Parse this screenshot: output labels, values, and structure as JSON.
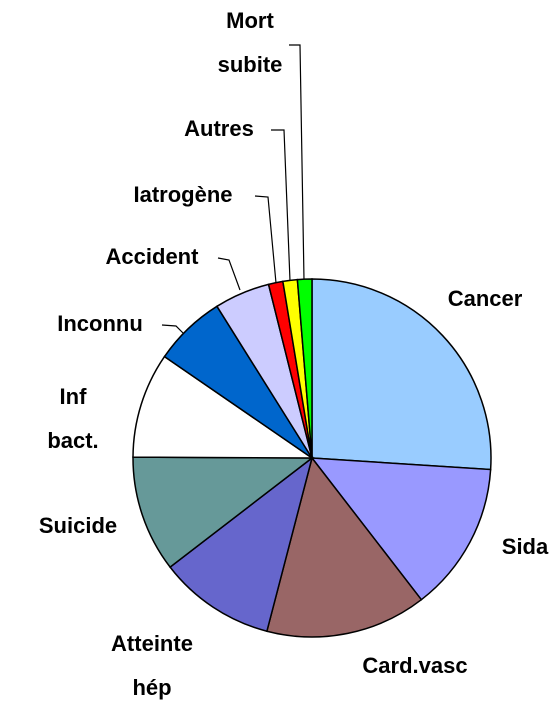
{
  "chart_data": {
    "type": "pie",
    "categories": [
      "Cancer",
      "Sida",
      "Card.vasc",
      "Atteinte hép",
      "Suicide",
      "Inf bact.",
      "Inconnu",
      "Accident",
      "Iatrogène",
      "Autres",
      "Mort subite"
    ],
    "values": [
      26,
      13.5,
      14.5,
      10.5,
      10.5,
      9.5,
      6.5,
      5,
      1.3,
      1.3,
      1.3
    ],
    "colors": [
      "#99ccff",
      "#9999ff",
      "#996666",
      "#6666cc",
      "#669999",
      "#ffffff",
      "#0066cc",
      "#ccccff",
      "#ff0000",
      "#ffff00",
      "#00ff00"
    ]
  }
}
